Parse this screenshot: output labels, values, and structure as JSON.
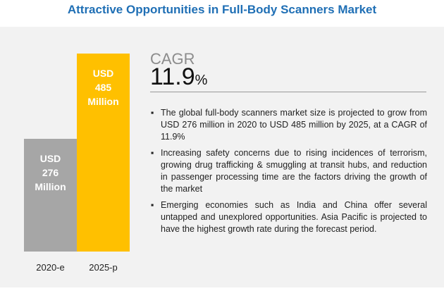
{
  "chart_data": {
    "type": "bar",
    "title": "Attractive Opportunities in Full-Body Scanners Market",
    "categories": [
      "2020-e",
      "2025-p"
    ],
    "values": [
      276,
      485
    ],
    "value_labels": [
      "USD 276 Million",
      "USD 485 Million"
    ],
    "colors": [
      "#a6a6a6",
      "#ffc000"
    ]
  },
  "cagr": {
    "label": "CAGR",
    "value": "11.9",
    "unit": "%"
  },
  "bullets": [
    "The global full-body scanners market size is projected to grow from USD 276 million in 2020 to USD 485 million by 2025, at a CAGR of 11.9%",
    "Increasing safety concerns due to rising incidences of terrorism, growing drug trafficking & smuggling at transit hubs, and reduction in passenger processing time are the factors driving the growth of the market",
    "Emerging economies such as India and China offer several untapped and unexplored opportunities. Asia Pacific is projected to have the highest growth rate during the forecast period."
  ]
}
